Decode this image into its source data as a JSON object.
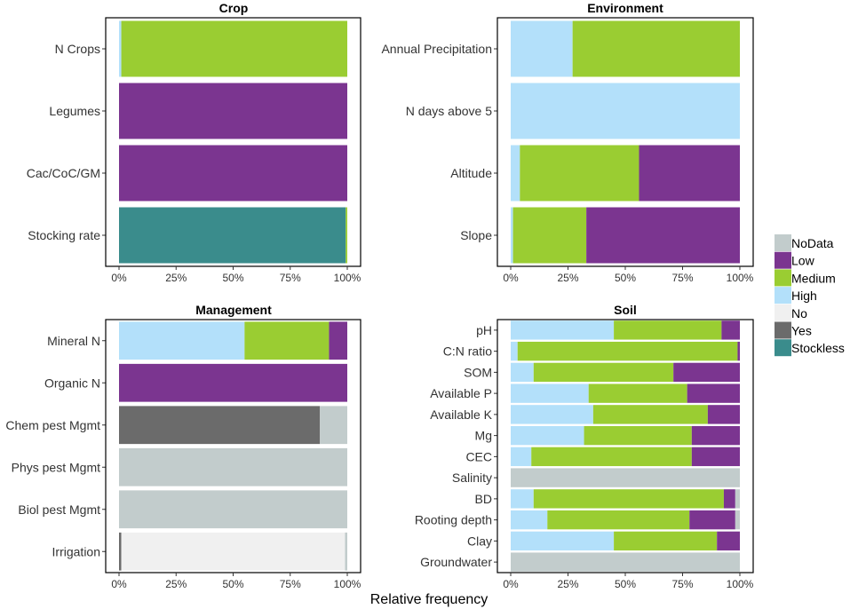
{
  "chart_data": {
    "type": "stacked-bar-horizontal",
    "xlabel": "Relative frequency",
    "ticks": [
      "0%",
      "25%",
      "50%",
      "75%",
      "100%"
    ],
    "xlim": [
      0,
      100
    ],
    "legend": {
      "position": "right",
      "items": [
        {
          "key": "NoData",
          "label": "NoData",
          "color": "#C2CCCC"
        },
        {
          "key": "Low",
          "label": "Low",
          "color": "#7B3590"
        },
        {
          "key": "Medium",
          "label": "Medium",
          "color": "#9ACD32"
        },
        {
          "key": "High",
          "label": "High",
          "color": "#B3E0FA"
        },
        {
          "key": "No",
          "label": "No",
          "color": "#F0F0F0"
        },
        {
          "key": "Yes",
          "label": "Yes",
          "color": "#6B6B6B"
        },
        {
          "key": "Stockless",
          "label": "Stockless",
          "color": "#3A8C8C"
        }
      ]
    },
    "panels": [
      {
        "id": "crop",
        "title": "Crop",
        "rows": [
          {
            "label": "N Crops",
            "segments": [
              {
                "cat": "High",
                "value": 1
              },
              {
                "cat": "Medium",
                "value": 99
              }
            ]
          },
          {
            "label": "Legumes",
            "segments": [
              {
                "cat": "Low",
                "value": 100
              }
            ]
          },
          {
            "label": "Cac/CoC/GM",
            "segments": [
              {
                "cat": "Low",
                "value": 100
              }
            ]
          },
          {
            "label": "Stocking rate",
            "segments": [
              {
                "cat": "Stockless",
                "value": 99.3
              },
              {
                "cat": "Medium",
                "value": 0.7
              }
            ]
          }
        ]
      },
      {
        "id": "environment",
        "title": "Environment",
        "rows": [
          {
            "label": "Annual Precipitation",
            "segments": [
              {
                "cat": "High",
                "value": 27
              },
              {
                "cat": "Medium",
                "value": 73
              }
            ]
          },
          {
            "label": "N days above 5",
            "segments": [
              {
                "cat": "High",
                "value": 100
              }
            ]
          },
          {
            "label": "Altitude",
            "segments": [
              {
                "cat": "High",
                "value": 4
              },
              {
                "cat": "Medium",
                "value": 52
              },
              {
                "cat": "Low",
                "value": 44
              }
            ]
          },
          {
            "label": "Slope",
            "segments": [
              {
                "cat": "High",
                "value": 1
              },
              {
                "cat": "Medium",
                "value": 32
              },
              {
                "cat": "Low",
                "value": 67
              }
            ]
          }
        ]
      },
      {
        "id": "management",
        "title": "Management",
        "rows": [
          {
            "label": "Mineral N",
            "segments": [
              {
                "cat": "High",
                "value": 55
              },
              {
                "cat": "Medium",
                "value": 37
              },
              {
                "cat": "Low",
                "value": 8
              }
            ]
          },
          {
            "label": "Organic N",
            "segments": [
              {
                "cat": "Low",
                "value": 100
              }
            ]
          },
          {
            "label": "Chem pest Mgmt",
            "segments": [
              {
                "cat": "Yes",
                "value": 88
              },
              {
                "cat": "NoData",
                "value": 12
              }
            ]
          },
          {
            "label": "Phys pest Mgmt",
            "segments": [
              {
                "cat": "NoData",
                "value": 100
              }
            ]
          },
          {
            "label": "Biol pest Mgmt",
            "segments": [
              {
                "cat": "NoData",
                "value": 100
              }
            ]
          },
          {
            "label": "Irrigation",
            "segments": [
              {
                "cat": "Yes",
                "value": 1
              },
              {
                "cat": "No",
                "value": 98
              },
              {
                "cat": "NoData",
                "value": 1
              }
            ]
          }
        ]
      },
      {
        "id": "soil",
        "title": "Soil",
        "rows": [
          {
            "label": "pH",
            "segments": [
              {
                "cat": "High",
                "value": 45
              },
              {
                "cat": "Medium",
                "value": 47
              },
              {
                "cat": "Low",
                "value": 8
              }
            ]
          },
          {
            "label": "C:N ratio",
            "segments": [
              {
                "cat": "High",
                "value": 3
              },
              {
                "cat": "Medium",
                "value": 96
              },
              {
                "cat": "Low",
                "value": 1
              }
            ]
          },
          {
            "label": "SOM",
            "segments": [
              {
                "cat": "High",
                "value": 10
              },
              {
                "cat": "Medium",
                "value": 61
              },
              {
                "cat": "Low",
                "value": 29
              }
            ]
          },
          {
            "label": "Available P",
            "segments": [
              {
                "cat": "High",
                "value": 34
              },
              {
                "cat": "Medium",
                "value": 43
              },
              {
                "cat": "Low",
                "value": 23
              }
            ]
          },
          {
            "label": "Available K",
            "segments": [
              {
                "cat": "High",
                "value": 36
              },
              {
                "cat": "Medium",
                "value": 50
              },
              {
                "cat": "Low",
                "value": 14
              }
            ]
          },
          {
            "label": "Mg",
            "segments": [
              {
                "cat": "High",
                "value": 32
              },
              {
                "cat": "Medium",
                "value": 47
              },
              {
                "cat": "Low",
                "value": 21
              }
            ]
          },
          {
            "label": "CEC",
            "segments": [
              {
                "cat": "High",
                "value": 9
              },
              {
                "cat": "Medium",
                "value": 70
              },
              {
                "cat": "Low",
                "value": 21
              }
            ]
          },
          {
            "label": "Salinity",
            "segments": [
              {
                "cat": "NoData",
                "value": 100
              }
            ]
          },
          {
            "label": "BD",
            "segments": [
              {
                "cat": "High",
                "value": 10
              },
              {
                "cat": "Medium",
                "value": 83
              },
              {
                "cat": "Low",
                "value": 5
              },
              {
                "cat": "NoData",
                "value": 2
              }
            ]
          },
          {
            "label": "Rooting depth",
            "segments": [
              {
                "cat": "High",
                "value": 16
              },
              {
                "cat": "Medium",
                "value": 62
              },
              {
                "cat": "Low",
                "value": 20
              },
              {
                "cat": "NoData",
                "value": 2
              }
            ]
          },
          {
            "label": "Clay",
            "segments": [
              {
                "cat": "High",
                "value": 45
              },
              {
                "cat": "Medium",
                "value": 45
              },
              {
                "cat": "Low",
                "value": 10
              }
            ]
          },
          {
            "label": "Groundwater",
            "segments": [
              {
                "cat": "NoData",
                "value": 100
              }
            ]
          }
        ]
      }
    ]
  }
}
